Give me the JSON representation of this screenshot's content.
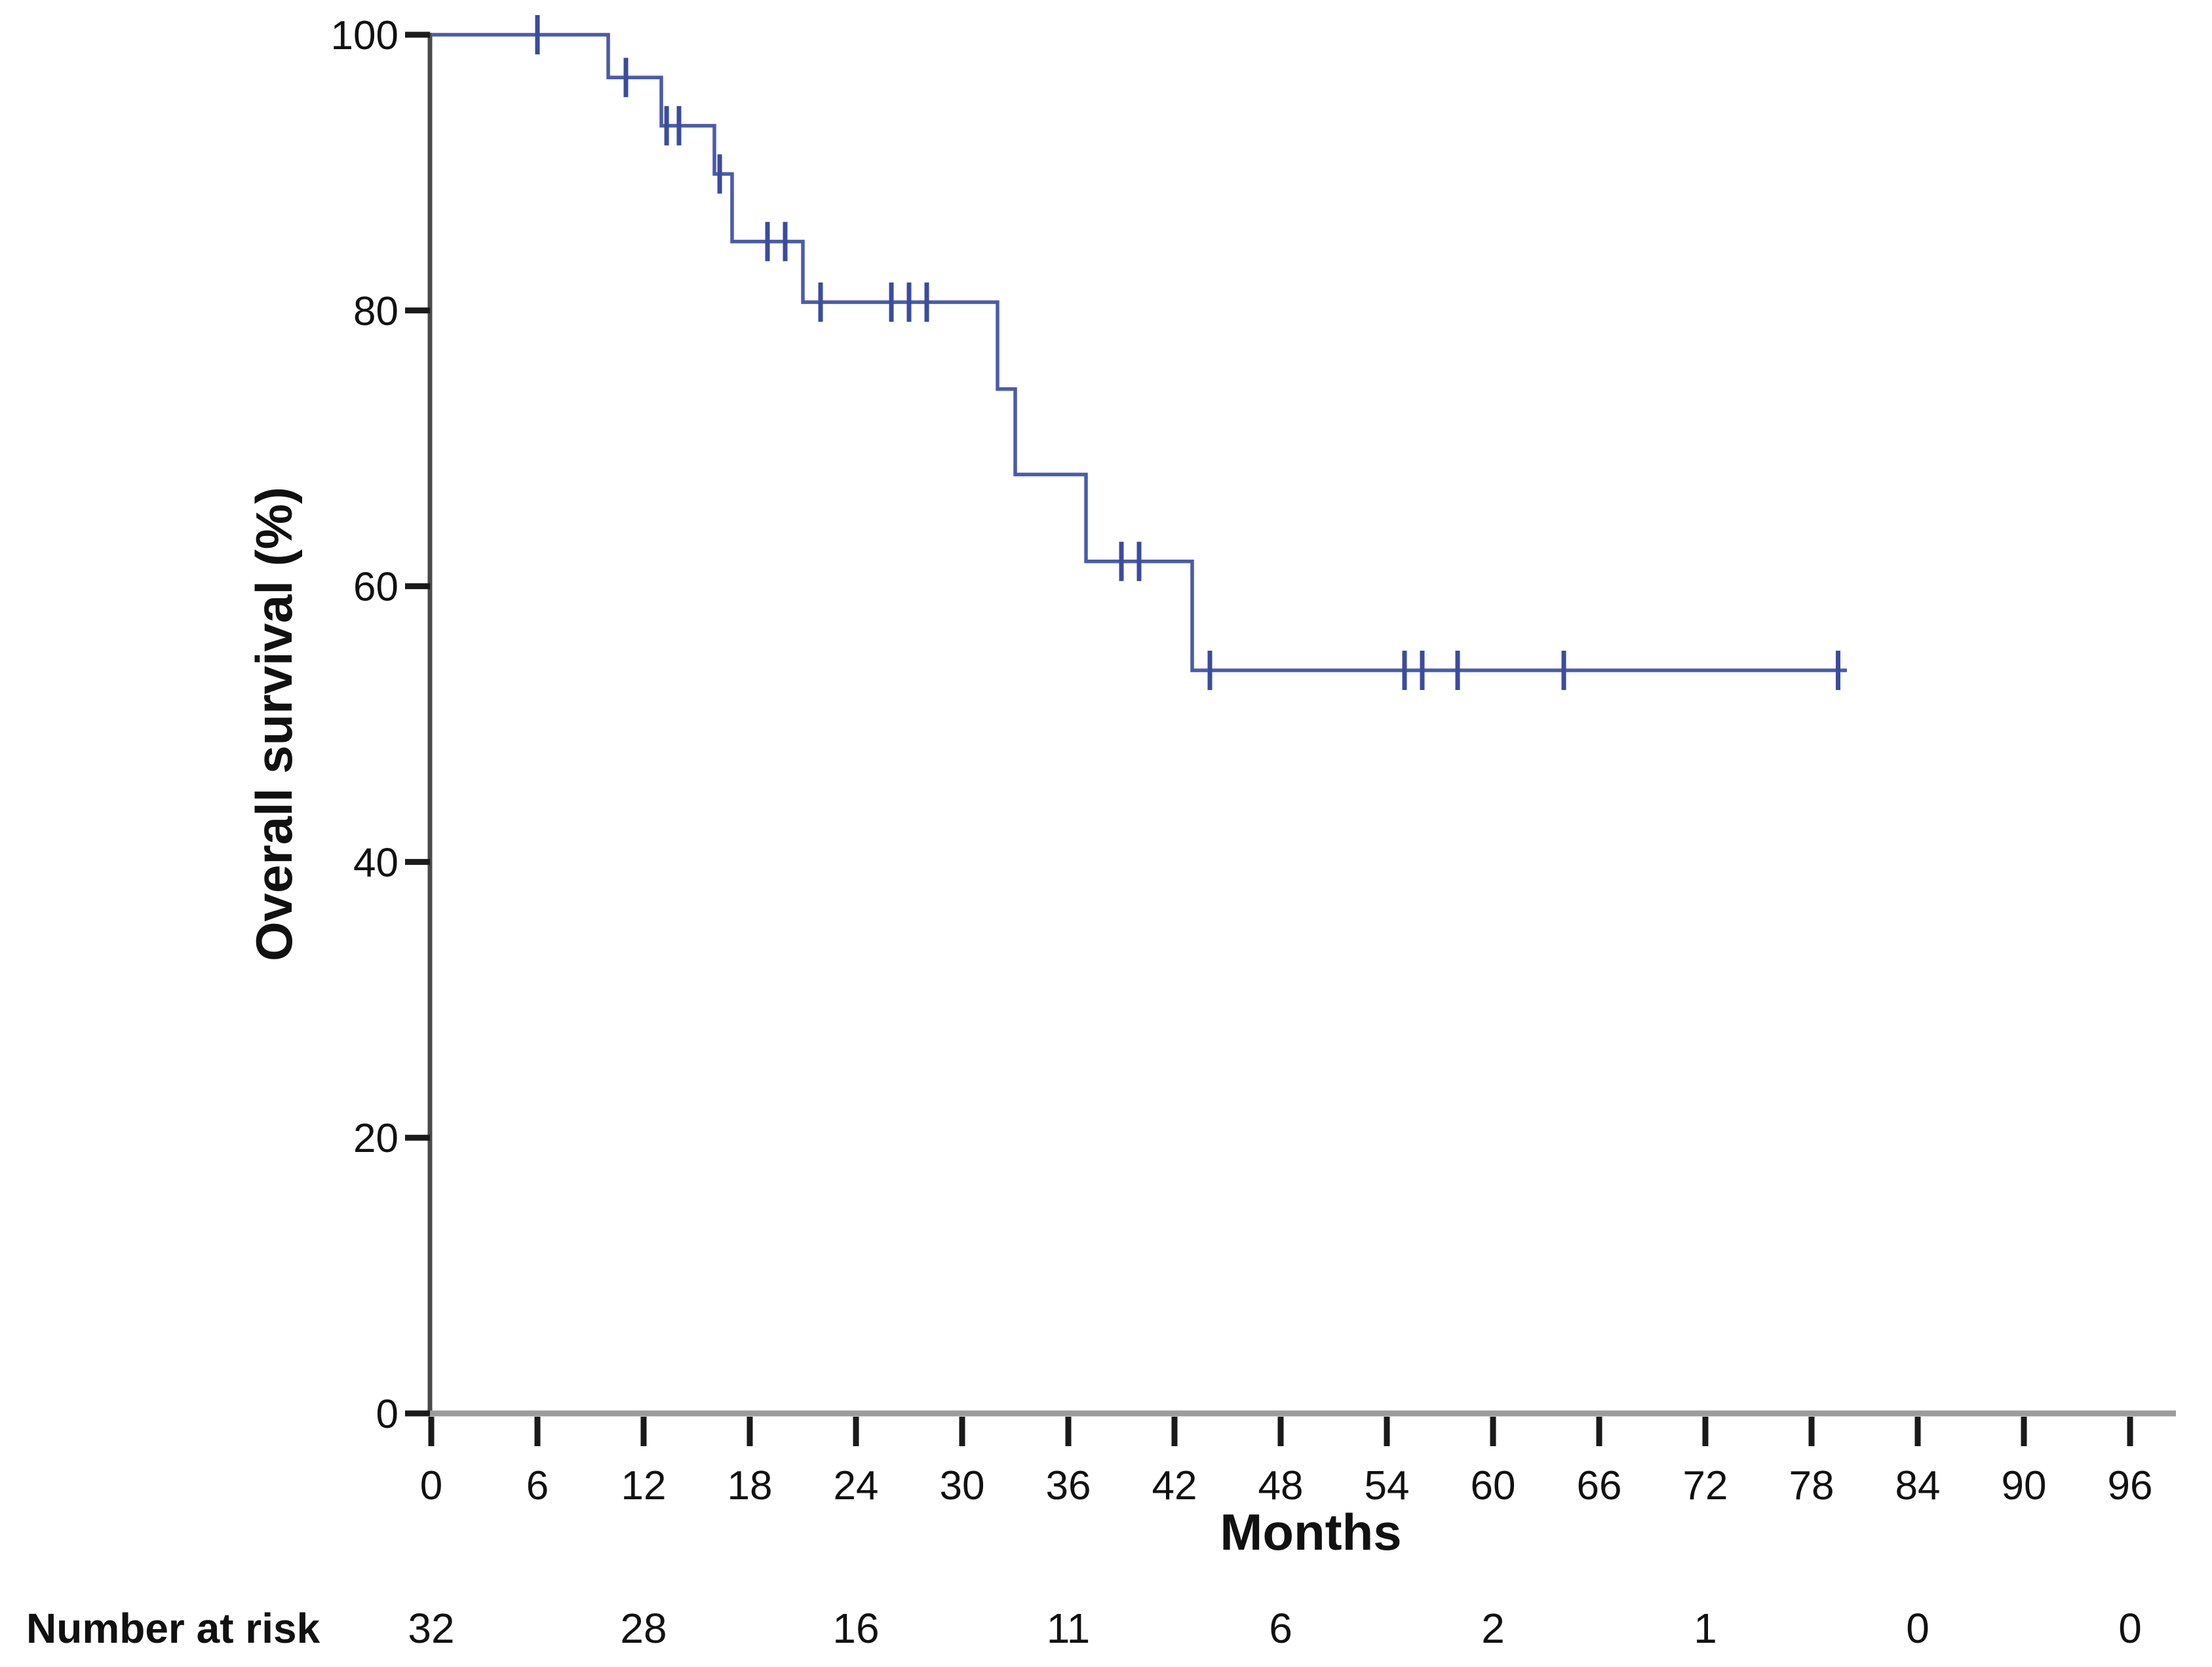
{
  "chart_data": {
    "type": "line",
    "subtype": "kaplan-meier-step-function",
    "title": "",
    "xlabel": "Months",
    "ylabel": "Overall survival (%)",
    "xlim": [
      0,
      96
    ],
    "ylim": [
      0,
      100
    ],
    "x_ticks": [
      0,
      6,
      12,
      18,
      24,
      30,
      36,
      42,
      48,
      54,
      60,
      66,
      72,
      78,
      84,
      90,
      96
    ],
    "y_ticks": [
      0,
      20,
      40,
      60,
      80,
      100
    ],
    "grid": false,
    "legend": false,
    "colors": {
      "curve": "#4a5ca8",
      "censor": "#3a4c9c",
      "x_axis_line": "#9c9c9c",
      "y_axis_line": "#4a4a4a",
      "tick": "#1a1a1a",
      "text": "#111111"
    },
    "series": [
      {
        "name": "Overall survival",
        "levels": [
          {
            "from": 0,
            "to": 10,
            "survival": 100
          },
          {
            "from": 10,
            "to": 13,
            "survival": 96.9
          },
          {
            "from": 13,
            "to": 16,
            "survival": 93.4
          },
          {
            "from": 16,
            "to": 17,
            "survival": 89.9
          },
          {
            "from": 17,
            "to": 21,
            "survival": 85.0
          },
          {
            "from": 21,
            "to": 32,
            "survival": 80.6
          },
          {
            "from": 32,
            "to": 33,
            "survival": 74.3
          },
          {
            "from": 33,
            "to": 37,
            "survival": 68.1
          },
          {
            "from": 37,
            "to": 43,
            "survival": 61.8
          },
          {
            "from": 43,
            "to": 80,
            "survival": 53.9
          }
        ],
        "censors": [
          {
            "t": 6,
            "s": 100
          },
          {
            "t": 11,
            "s": 96.9
          },
          {
            "t": 13.3,
            "s": 93.4
          },
          {
            "t": 14,
            "s": 93.4
          },
          {
            "t": 16.3,
            "s": 89.9
          },
          {
            "t": 19,
            "s": 85.0
          },
          {
            "t": 20,
            "s": 85.0
          },
          {
            "t": 22,
            "s": 80.6
          },
          {
            "t": 26,
            "s": 80.6
          },
          {
            "t": 27,
            "s": 80.6
          },
          {
            "t": 28,
            "s": 80.6
          },
          {
            "t": 39,
            "s": 61.8
          },
          {
            "t": 40,
            "s": 61.8
          },
          {
            "t": 44,
            "s": 53.9
          },
          {
            "t": 55,
            "s": 53.9
          },
          {
            "t": 56,
            "s": 53.9
          },
          {
            "t": 58,
            "s": 53.9
          },
          {
            "t": 64,
            "s": 53.9
          },
          {
            "t": 79.5,
            "s": 53.9
          }
        ]
      }
    ],
    "risk_table": {
      "label": "Number at risk",
      "times": [
        0,
        12,
        24,
        36,
        48,
        60,
        72,
        84,
        96
      ],
      "values": [
        32,
        28,
        16,
        11,
        6,
        2,
        1,
        0,
        0
      ]
    }
  }
}
